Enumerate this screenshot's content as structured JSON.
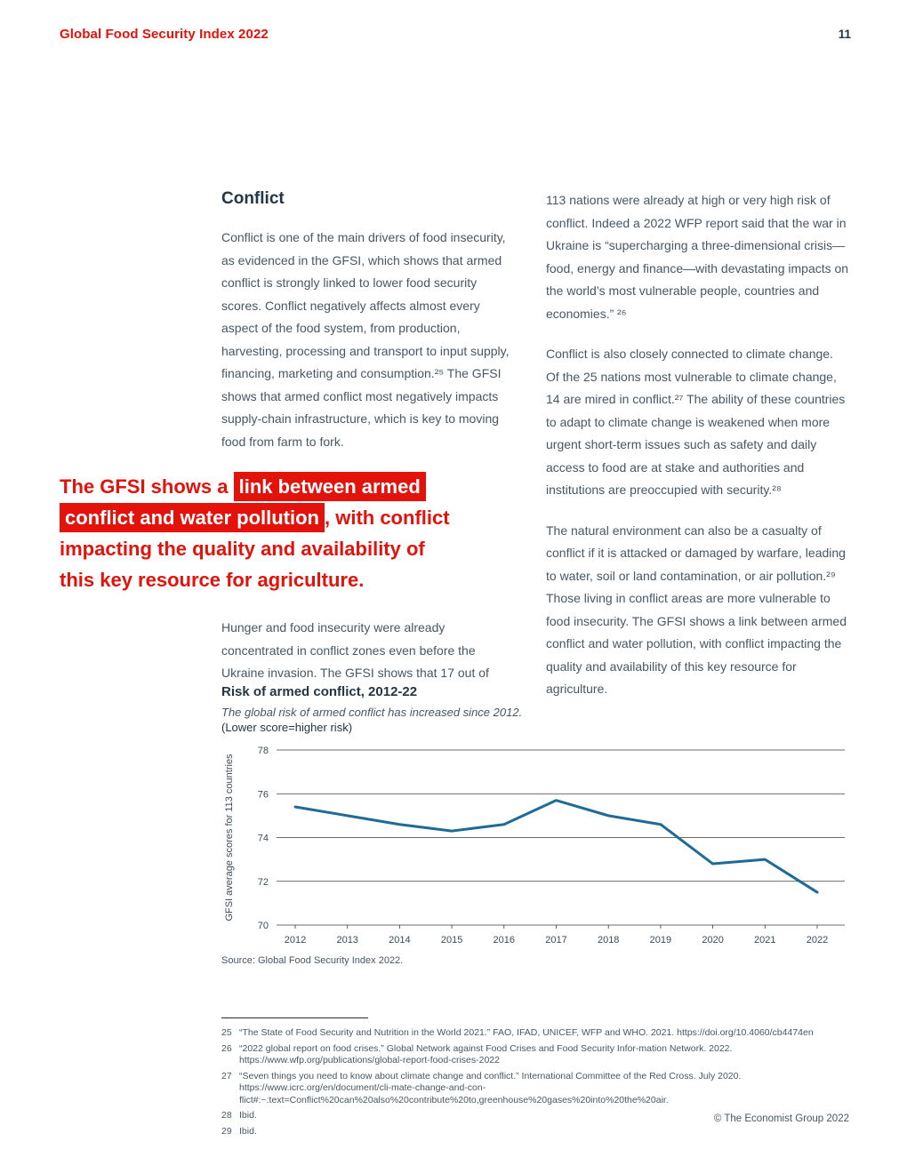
{
  "header": {
    "title": "Global Food Security Index 2022",
    "page_number": "11"
  },
  "article": {
    "heading": "Conflict",
    "left": {
      "p1": "Conflict is one of the main drivers of food insecurity, as evidenced in the GFSI, which shows that armed conflict is strongly linked to lower food security scores. Conflict negatively affects almost every aspect of the food system, from production, harvesting, processing and transport to input supply, financing, marketing and consumption.²⁵ The GFSI shows that armed conflict most negatively impacts supply-chain infrastructure, which is key to moving food from farm to fork.",
      "p2": "Hunger and food insecurity were already concentrated in conflict zones even before the Ukraine invasion. The GFSI shows that 17 out of"
    },
    "right": {
      "p1": "113 nations were already at high or very high risk of conflict. Indeed a 2022 WFP report said that the war in Ukraine is “supercharging a three-dimensional crisis—food, energy and finance—with devastating impacts on the world’s most vulnerable people, countries and economies.” ²⁶",
      "p2": "Conflict is also closely connected to climate change. Of the 25 nations most vulnerable to climate change, 14 are mired in conflict.²⁷ The ability of these countries to adapt to climate change is weakened when more urgent short-term issues such as safety and daily access to food are at stake and authorities and institutions are preoccupied with security.²⁸",
      "p3": "The natural environment can also be a casualty of conflict if it is attacked or damaged by warfare, leading to water, soil or land contamination, or air pollution.²⁹ Those living in conflict areas are more vulnerable to food insecurity. The GFSI shows a link between armed conflict and water pollution, with conflict impacting the quality and availability of this key resource for agriculture."
    },
    "pullquote": {
      "segments": [
        {
          "text": "The GFSI shows a ",
          "highlight": false
        },
        {
          "text": "link between armed",
          "highlight": true
        },
        {
          "br": true
        },
        {
          "text": "conflict and water pollution",
          "highlight": true
        },
        {
          "text": ", with conflict",
          "highlight": false
        },
        {
          "br": true
        },
        {
          "text": "impacting the quality and availability of",
          "highlight": false
        },
        {
          "br": true
        },
        {
          "text": "this key resource for agriculture.",
          "highlight": false
        }
      ]
    }
  },
  "chart_data": {
    "type": "line",
    "title": "Risk of armed conflict, 2012-22",
    "subtitle": "The global risk of armed conflict has increased since 2012.",
    "note": "(Lower score=higher risk)",
    "x": [
      "2012",
      "2013",
      "2014",
      "2015",
      "2016",
      "2017",
      "2018",
      "2019",
      "2020",
      "2021",
      "2022"
    ],
    "values": [
      75.4,
      75.0,
      74.6,
      74.3,
      74.6,
      75.7,
      75.0,
      74.6,
      72.8,
      73.0,
      71.5
    ],
    "ylabel": "GFSI average scores for 113 countries",
    "xlabel": "",
    "ylim": [
      70,
      78
    ],
    "yticks": [
      70,
      72,
      74,
      76,
      78
    ],
    "grid": true,
    "legend": "none",
    "line_color": "#1e6b96",
    "source": "Source: Global Food Security Index 2022."
  },
  "footnotes": [
    {
      "number": "25",
      "text": "“The State of Food Security and Nutrition in the World 2021.” FAO, IFAD, UNICEF, WFP and WHO. 2021. https://doi.org/10.4060/cb4474en"
    },
    {
      "number": "26",
      "text": "“2022 global report on food crises.” Global Network against Food Crises and Food Security Infor-mation Network. 2022. https://www.wfp.org/publications/global-report-food-crises-2022"
    },
    {
      "number": "27",
      "text": "“Seven things you need to know about climate change and conflict.” International Committee of the Red Cross. July 2020. https://www.icrc.org/en/document/cli-mate-change-and-con-flict#:~:text=Conflict%20can%20also%20contribute%20to,greenhouse%20gases%20into%20the%20air."
    },
    {
      "number": "28",
      "text": "Ibid."
    },
    {
      "number": "29",
      "text": "Ibid."
    }
  ],
  "footer": {
    "copyright": "© The Economist Group 2022"
  },
  "colors": {
    "accent_red": "#e3120b",
    "chart_line_blue": "#1e6b96",
    "body_text": "#475763",
    "heading_text": "#233645"
  }
}
